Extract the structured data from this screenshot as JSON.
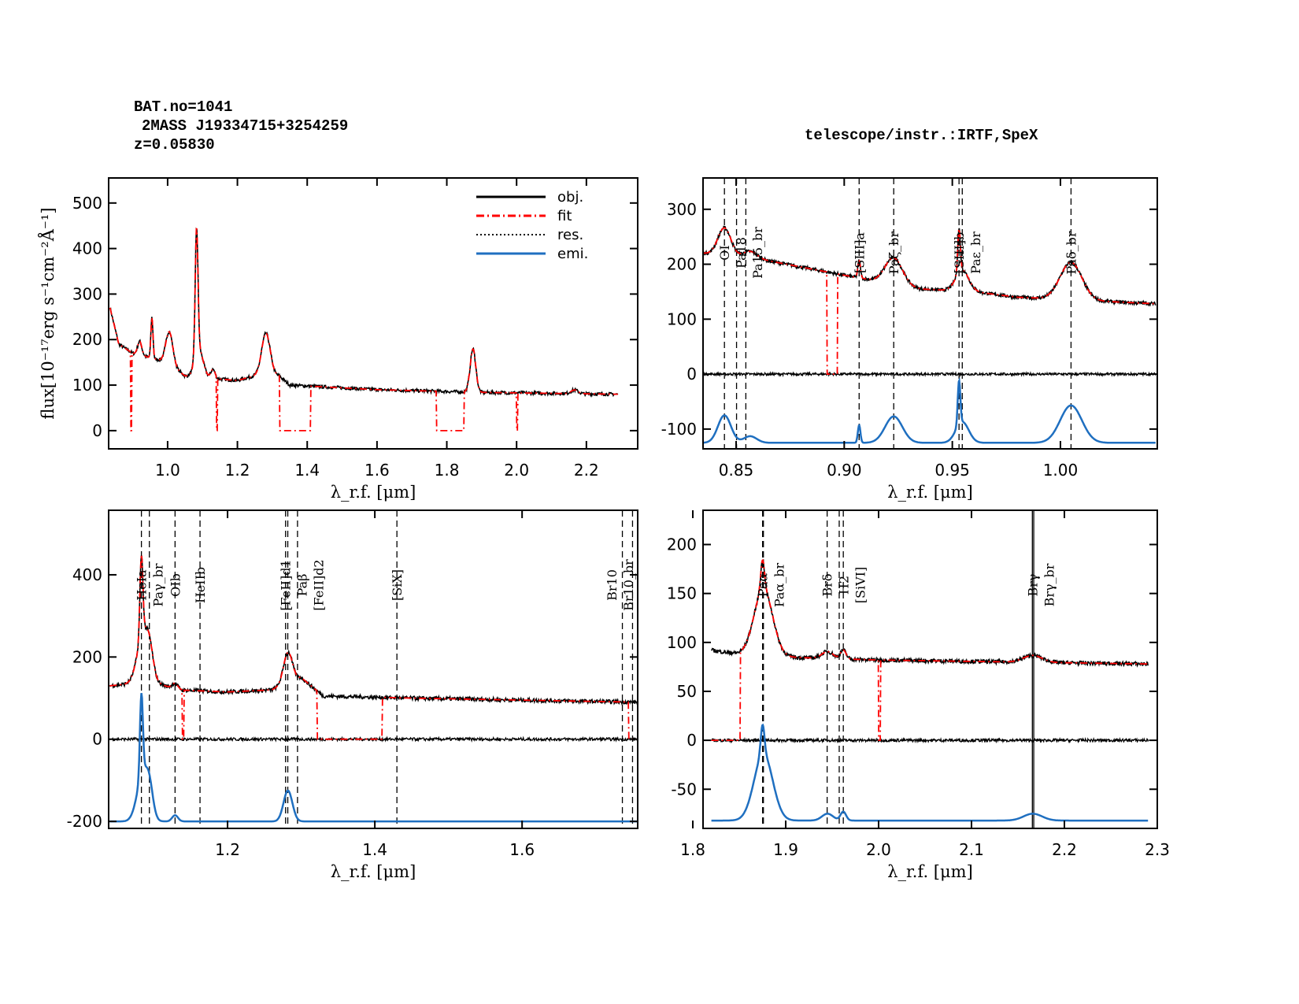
{
  "header": {
    "object_id": "BAT.no=1041",
    "object_name": "2MASS J19334715+3254259",
    "redshift": "z=0.05830",
    "instrument": "telescope/instr.:IRTF,SpeX"
  },
  "colors": {
    "obj": "#000000",
    "fit": "#ff0000",
    "res": "#000000",
    "emi": "#1f6fc0"
  },
  "legend": {
    "placement": "top-right",
    "entries": [
      "obj.",
      "fit",
      "res.",
      "emi."
    ]
  },
  "chart_data": [
    {
      "type": "line",
      "title": "",
      "xlabel": "λ_r.f. [μm]",
      "ylabel": "flux[10^-17erg s^-1cm^-2Å^-1]",
      "xlim": [
        0.831,
        2.347
      ],
      "ylim": [
        -40,
        555
      ],
      "xticks": [
        "1.0",
        "1.2",
        "1.4",
        "1.6",
        "1.8",
        "2.0",
        "2.2"
      ],
      "yticks": [
        "0",
        "100",
        "200",
        "300",
        "400",
        "500"
      ],
      "data_range": [
        0.835,
        2.29
      ],
      "continuum": [
        [
          0.835,
          270
        ],
        [
          0.86,
          190
        ],
        [
          0.9,
          170
        ],
        [
          1.0,
          150
        ],
        [
          1.05,
          120
        ],
        [
          1.2,
          110
        ],
        [
          1.27,
          125
        ],
        [
          1.32,
          120
        ],
        [
          1.35,
          100
        ],
        [
          1.6,
          90
        ],
        [
          1.9,
          84
        ],
        [
          2.29,
          80
        ]
      ],
      "lines": [
        [
          0.92,
          30,
          0.006
        ],
        [
          0.955,
          90,
          0.003
        ],
        [
          1.005,
          70,
          0.01
        ],
        [
          1.083,
          280,
          0.004
        ],
        [
          1.09,
          60,
          0.012
        ],
        [
          1.13,
          20,
          0.006
        ],
        [
          1.282,
          90,
          0.012
        ],
        [
          1.875,
          95,
          0.008
        ],
        [
          2.166,
          8,
          0.01
        ]
      ],
      "fit_gaps": [
        [
          0.894,
          0.898
        ],
        [
          1.14,
          1.143
        ],
        [
          1.32,
          1.41
        ],
        [
          1.77,
          1.85
        ],
        [
          2.0,
          2.003
        ]
      ],
      "show_res": false,
      "emi_base": null,
      "markers": []
    },
    {
      "type": "line",
      "xlabel": "λ_r.f. [μm]",
      "xlim": [
        0.8347,
        1.0448
      ],
      "ylim": [
        -136,
        357
      ],
      "xticks": [
        "0.85",
        "0.90",
        "0.95",
        "1.00"
      ],
      "yticks": [
        "-100",
        "0",
        "100",
        "200",
        "300"
      ],
      "data_range": [
        0.835,
        1.044
      ],
      "continuum": [
        [
          0.835,
          220
        ],
        [
          0.86,
          210
        ],
        [
          0.88,
          195
        ],
        [
          0.9,
          180
        ],
        [
          0.935,
          155
        ],
        [
          0.96,
          150
        ],
        [
          0.98,
          140
        ],
        [
          1.044,
          128
        ]
      ],
      "lines": [
        [
          0.8446,
          50,
          0.003
        ],
        [
          0.8565,
          12,
          0.003
        ],
        [
          0.9069,
          32,
          0.0006
        ],
        [
          0.9229,
          48,
          0.004
        ],
        [
          0.9531,
          80,
          0.0006
        ],
        [
          0.9546,
          38,
          0.003
        ],
        [
          1.0049,
          68,
          0.005
        ]
      ],
      "fit_gaps": [
        [
          0.892,
          0.897
        ]
      ],
      "show_res": true,
      "emi_base": -125,
      "markers": [
        {
          "x": 0.8446,
          "label": "OI",
          "style": "dashed"
        },
        {
          "x": 0.8502,
          "label": "Pa18",
          "style": "dashed"
        },
        {
          "x": 0.8545,
          "label": "Pa15_br",
          "style": "dashed"
        },
        {
          "x": 0.9069,
          "label": "[SIII]a",
          "style": "dashed"
        },
        {
          "x": 0.9229,
          "label": "Paζ_br",
          "style": "dashed"
        },
        {
          "x": 0.9531,
          "label": "[SIII]b",
          "style": "dashed"
        },
        {
          "x": 0.9546,
          "label": "Paε_br",
          "style": "dashed"
        },
        {
          "x": 1.0049,
          "label": "Paδ_br",
          "style": "dashed"
        }
      ]
    },
    {
      "type": "line",
      "xlabel": "λ_r.f. [μm]",
      "xlim": [
        1.0385,
        1.757
      ],
      "ylim": [
        -217,
        557
      ],
      "xticks": [
        "1.2",
        "1.4",
        "1.6"
      ],
      "yticks": [
        "-200",
        "0",
        "200",
        "400"
      ],
      "data_range": [
        1.04,
        1.757
      ],
      "continuum": [
        [
          1.04,
          130
        ],
        [
          1.07,
          135
        ],
        [
          1.1,
          140
        ],
        [
          1.13,
          120
        ],
        [
          1.2,
          115
        ],
        [
          1.26,
          120
        ],
        [
          1.3,
          150
        ],
        [
          1.33,
          105
        ],
        [
          1.45,
          100
        ],
        [
          1.757,
          90
        ]
      ],
      "lines": [
        [
          1.083,
          200,
          0.002
        ],
        [
          1.085,
          110,
          0.008
        ],
        [
          1.0938,
          55,
          0.005
        ],
        [
          1.1287,
          15,
          0.004
        ],
        [
          1.282,
          75,
          0.006
        ]
      ],
      "fit_gaps": [
        [
          1.138,
          1.141
        ],
        [
          1.322,
          1.41
        ],
        [
          1.745,
          1.757
        ]
      ],
      "show_res": true,
      "emi_base": -200,
      "markers": [
        {
          "x": 1.083,
          "label": "HeIa",
          "style": "dashed"
        },
        {
          "x": 1.0938,
          "label": "Paγ_br",
          "style": "dashed"
        },
        {
          "x": 1.1287,
          "label": "OIb",
          "style": "dashed"
        },
        {
          "x": 1.1626,
          "label": "HeIIb",
          "style": "dashed"
        },
        {
          "x": 1.2788,
          "label": "[FeII]d1",
          "style": "dashed"
        },
        {
          "x": 1.2818,
          "label": "Paβ",
          "style": "dashed"
        },
        {
          "x": 1.295,
          "label": "[FeII]d2",
          "style": "dashed"
        },
        {
          "x": 1.43,
          "label": "[SiX]",
          "style": "dashed"
        },
        {
          "x": 1.7362,
          "label": "Br10",
          "style": "dashed"
        },
        {
          "x": 1.75,
          "label": "Br10_br",
          "style": "dashed"
        }
      ]
    },
    {
      "type": "line",
      "xlabel": "λ_r.f. [μm]",
      "xlim": [
        1.811,
        2.3
      ],
      "ylim": [
        -90,
        235
      ],
      "xticks": [
        "1.8",
        "1.9",
        "2.0",
        "2.1",
        "2.2",
        "2.3"
      ],
      "yticks": [
        "-50",
        "0",
        "50",
        "100",
        "150",
        "200"
      ],
      "data_range": [
        1.82,
        2.29
      ],
      "continuum": [
        [
          1.82,
          92
        ],
        [
          1.85,
          88
        ],
        [
          1.9,
          85
        ],
        [
          2.0,
          82
        ],
        [
          2.29,
          78
        ]
      ],
      "lines": [
        [
          1.8751,
          30,
          0.002
        ],
        [
          1.876,
          68,
          0.01
        ],
        [
          1.945,
          7,
          0.006
        ],
        [
          1.962,
          9,
          0.003
        ],
        [
          2.166,
          7,
          0.01
        ]
      ],
      "fit_gaps": [
        [
          1.82,
          1.851
        ],
        [
          2.0,
          2.002
        ]
      ],
      "show_res": true,
      "emi_base": -82,
      "markers": [
        {
          "x": 1.8751,
          "label": "Paα",
          "style": "dashed"
        },
        {
          "x": 1.876,
          "label": "Paα_br",
          "style": "dashed"
        },
        {
          "x": 1.9446,
          "label": "Brδ",
          "style": "dashed"
        },
        {
          "x": 1.9576,
          "label": "H2",
          "style": "dashed"
        },
        {
          "x": 1.962,
          "label": "[SiVI]",
          "style": "dashed"
        },
        {
          "x": 2.1655,
          "label": "Brγ",
          "style": "solid"
        },
        {
          "x": 2.167,
          "label": "Brγ_br",
          "style": "solid"
        }
      ]
    }
  ]
}
